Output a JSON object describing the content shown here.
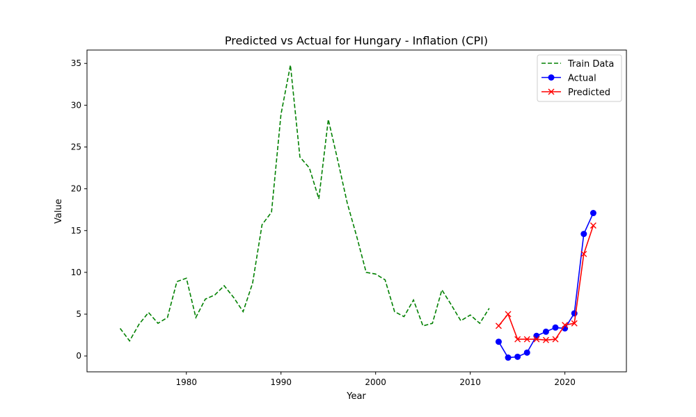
{
  "chart_data": {
    "type": "line",
    "title": "Predicted vs Actual for Hungary - Inflation (CPI)",
    "xlabel": "Year",
    "ylabel": "Value",
    "xlim": [
      1969.5,
      2026.5
    ],
    "ylim": [
      -1.9,
      36.6
    ],
    "xticks": [
      1980,
      1990,
      2000,
      2010,
      2020
    ],
    "yticks": [
      0,
      5,
      10,
      15,
      20,
      25,
      30,
      35
    ],
    "grid": false,
    "legend_position": "top-right",
    "series": [
      {
        "name": "Train Data",
        "color": "#008000",
        "style": "dashed",
        "marker": "none",
        "x": [
          1973,
          1974,
          1975,
          1976,
          1977,
          1978,
          1979,
          1980,
          1981,
          1982,
          1983,
          1984,
          1985,
          1986,
          1987,
          1988,
          1989,
          1990,
          1991,
          1992,
          1993,
          1994,
          1995,
          1996,
          1997,
          1998,
          1999,
          2000,
          2001,
          2002,
          2003,
          2004,
          2005,
          2006,
          2007,
          2008,
          2009,
          2010,
          2011,
          2012
        ],
        "y": [
          3.3,
          1.8,
          3.8,
          5.2,
          3.9,
          4.6,
          8.9,
          9.3,
          4.6,
          6.8,
          7.3,
          8.4,
          7.0,
          5.3,
          8.7,
          15.7,
          17.2,
          28.9,
          34.8,
          23.8,
          22.5,
          18.8,
          28.3,
          23.4,
          18.3,
          14.3,
          10.0,
          9.8,
          9.1,
          5.3,
          4.7,
          6.7,
          3.6,
          3.9,
          7.9,
          6.1,
          4.2,
          4.9,
          3.9,
          5.7
        ]
      },
      {
        "name": "Actual",
        "color": "#0000ff",
        "style": "solid",
        "marker": "circle",
        "x": [
          2013,
          2014,
          2015,
          2016,
          2017,
          2018,
          2019,
          2020,
          2021,
          2022,
          2023
        ],
        "y": [
          1.7,
          -0.2,
          -0.1,
          0.4,
          2.4,
          2.9,
          3.4,
          3.3,
          5.1,
          14.6,
          17.1
        ]
      },
      {
        "name": "Predicted",
        "color": "#ff0000",
        "style": "solid",
        "marker": "x",
        "x": [
          2013,
          2014,
          2015,
          2016,
          2017,
          2018,
          2019,
          2020,
          2021,
          2022,
          2023
        ],
        "y": [
          3.6,
          5.0,
          2.0,
          2.0,
          2.0,
          1.9,
          2.0,
          3.7,
          3.9,
          12.2,
          15.6
        ]
      }
    ]
  }
}
